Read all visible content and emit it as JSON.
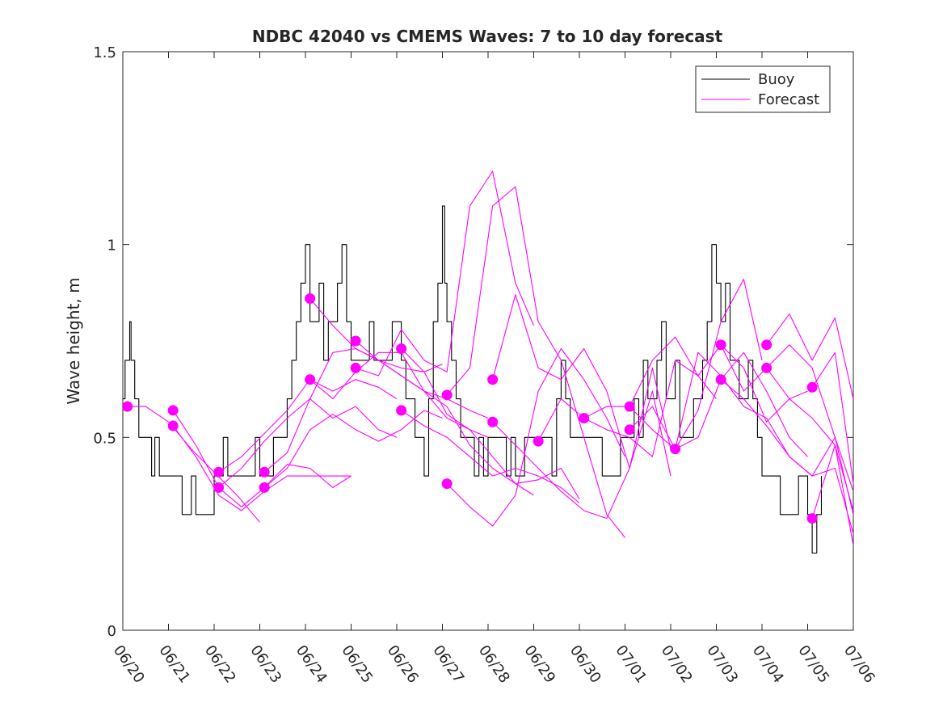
{
  "chart_data": {
    "type": "line",
    "title": "NDBC 42040 vs CMEMS Waves: 7 to 10 day forecast",
    "xlabel": "",
    "ylabel": "Wave height, m",
    "x_unit": "days after 06/20",
    "xlim": [
      0,
      16
    ],
    "ylim": [
      0,
      1.5
    ],
    "yticks": [
      0,
      0.5,
      1,
      1.5
    ],
    "ytick_labels": [
      "0",
      "0.5",
      "1",
      "1.5"
    ],
    "xticks": [
      0,
      1,
      2,
      3,
      4,
      5,
      6,
      7,
      8,
      9,
      10,
      11,
      12,
      13,
      14,
      15,
      16
    ],
    "xtick_labels": [
      "06/20",
      "06/21",
      "06/22",
      "06/23",
      "06/24",
      "06/25",
      "06/26",
      "06/27",
      "06/28",
      "06/29",
      "06/30",
      "07/01",
      "07/02",
      "07/03",
      "07/04",
      "07/05",
      "07/06"
    ],
    "legend": {
      "placement": "top-right",
      "entries": [
        {
          "label": "Buoy",
          "color": "#000000"
        },
        {
          "label": "Forecast",
          "color": "#ff00ff"
        }
      ]
    },
    "colors": {
      "buoy": "#000000",
      "forecast": "#ff00ff"
    },
    "series": [
      {
        "name": "Buoy",
        "color": "#000000",
        "step": true,
        "x": [
          0.0,
          0.05,
          0.1,
          0.15,
          0.18,
          0.22,
          0.26,
          0.3,
          0.35,
          0.4,
          0.45,
          0.5,
          0.58,
          0.63,
          0.7,
          0.8,
          0.9,
          1.0,
          1.1,
          1.2,
          1.3,
          1.38,
          1.45,
          1.5,
          1.6,
          1.8,
          2.0,
          2.2,
          2.3,
          2.4,
          2.5,
          2.55,
          2.6,
          2.7,
          2.8,
          2.9,
          3.0,
          3.1,
          3.2,
          3.3,
          3.35,
          3.4,
          3.5,
          3.6,
          3.7,
          3.8,
          3.9,
          4.0,
          4.1,
          4.2,
          4.3,
          4.4,
          4.5,
          4.6,
          4.7,
          4.75,
          4.8,
          4.9,
          5.0,
          5.1,
          5.2,
          5.3,
          5.4,
          5.5,
          5.6,
          5.7,
          5.8,
          5.9,
          6.0,
          6.1,
          6.2,
          6.3,
          6.4,
          6.5,
          6.6,
          6.7,
          6.8,
          6.9,
          7.0,
          7.05,
          7.1,
          7.2,
          7.3,
          7.4,
          7.5,
          7.6,
          7.7,
          7.8,
          7.9,
          8.0,
          8.1,
          8.2,
          8.3,
          8.4,
          8.5,
          8.6,
          8.7,
          8.8,
          8.9,
          9.0,
          9.1,
          9.2,
          9.3,
          9.4,
          9.5,
          9.6,
          9.7,
          9.8,
          9.9,
          10.0,
          10.1,
          10.2,
          10.3,
          10.4,
          10.5,
          10.6,
          10.7,
          10.8,
          10.9,
          11.0,
          11.1,
          11.2,
          11.3,
          11.4,
          11.5,
          11.6,
          11.7,
          11.8,
          11.9,
          12.0,
          12.1,
          12.2,
          12.3,
          12.4,
          12.5,
          12.6,
          12.7,
          12.8,
          12.9,
          13.0,
          13.1,
          13.2,
          13.3,
          13.4,
          13.5,
          13.6,
          13.7,
          13.8,
          13.9,
          14.0,
          14.2,
          14.4,
          14.6,
          14.8,
          15.0,
          15.05,
          15.1,
          15.2,
          15.3
        ],
        "y": [
          0.6,
          0.7,
          0.7,
          0.8,
          0.7,
          0.7,
          0.6,
          0.6,
          0.5,
          0.5,
          0.5,
          0.5,
          0.5,
          0.4,
          0.5,
          0.4,
          0.4,
          0.4,
          0.4,
          0.4,
          0.3,
          0.3,
          0.3,
          0.4,
          0.3,
          0.3,
          0.4,
          0.5,
          0.4,
          0.4,
          0.4,
          0.4,
          0.4,
          0.4,
          0.4,
          0.5,
          0.4,
          0.4,
          0.4,
          0.5,
          0.5,
          0.5,
          0.5,
          0.6,
          0.7,
          0.8,
          0.9,
          1.0,
          0.8,
          0.8,
          0.9,
          0.7,
          0.8,
          0.8,
          0.9,
          0.9,
          1.0,
          0.8,
          0.7,
          0.7,
          0.7,
          0.7,
          0.8,
          0.7,
          0.7,
          0.7,
          0.7,
          0.8,
          0.8,
          0.7,
          0.6,
          0.6,
          0.5,
          0.5,
          0.4,
          0.6,
          0.8,
          0.9,
          1.1,
          0.9,
          0.8,
          0.7,
          0.6,
          0.5,
          0.5,
          0.5,
          0.4,
          0.5,
          0.4,
          0.5,
          0.5,
          0.5,
          0.5,
          0.4,
          0.5,
          0.4,
          0.4,
          0.5,
          0.5,
          0.5,
          0.5,
          0.5,
          0.5,
          0.4,
          0.6,
          0.7,
          0.6,
          0.5,
          0.5,
          0.5,
          0.5,
          0.5,
          0.5,
          0.5,
          0.4,
          0.4,
          0.4,
          0.4,
          0.5,
          0.5,
          0.5,
          0.6,
          0.5,
          0.7,
          0.6,
          0.6,
          0.7,
          0.8,
          0.6,
          0.6,
          0.7,
          0.5,
          0.5,
          0.5,
          0.6,
          0.6,
          0.7,
          0.8,
          1.0,
          0.9,
          0.8,
          0.9,
          0.7,
          0.7,
          0.6,
          0.6,
          0.7,
          0.6,
          0.5,
          0.4,
          0.4,
          0.3,
          0.3,
          0.4,
          0.3,
          0.3,
          0.2,
          0.3,
          0.4
        ]
      },
      {
        "name": "Forecast",
        "color": "#ff00ff",
        "x": [
          0.1,
          0.5,
          1.0,
          1.5,
          2.0,
          2.5,
          3.0
        ],
        "y": [
          0.58,
          0.58,
          0.54,
          0.47,
          0.41,
          0.35,
          0.28
        ]
      },
      {
        "name": "Forecast",
        "color": "#ff00ff",
        "x": [
          1.1,
          1.6,
          2.1,
          2.6,
          3.1,
          3.6,
          4.1,
          4.6,
          5.0
        ],
        "y": [
          0.57,
          0.48,
          0.37,
          0.32,
          0.37,
          0.43,
          0.42,
          0.37,
          0.4
        ]
      },
      {
        "name": "Forecast",
        "color": "#ff00ff",
        "x": [
          1.1,
          1.6,
          2.1,
          2.6,
          3.1,
          3.6,
          4.1,
          4.6,
          5.0
        ],
        "y": [
          0.53,
          0.45,
          0.35,
          0.31,
          0.36,
          0.4,
          0.4,
          0.4,
          0.4
        ]
      },
      {
        "name": "Forecast",
        "color": "#ff00ff",
        "x": [
          2.1,
          2.6,
          3.1,
          3.6,
          4.1,
          4.6,
          5.1,
          5.6,
          6.0
        ],
        "y": [
          0.41,
          0.45,
          0.51,
          0.57,
          0.65,
          0.62,
          0.65,
          0.63,
          0.6
        ]
      },
      {
        "name": "Forecast",
        "color": "#ff00ff",
        "x": [
          2.1,
          2.6,
          3.1,
          3.6,
          4.1,
          4.6,
          5.1,
          5.6,
          6.0
        ],
        "y": [
          0.37,
          0.42,
          0.49,
          0.55,
          0.6,
          0.55,
          0.58,
          0.52,
          0.5
        ]
      },
      {
        "name": "Forecast",
        "color": "#ff00ff",
        "x": [
          3.1,
          3.6,
          4.1,
          4.6,
          5.1,
          5.6,
          6.1,
          6.6,
          7.0
        ],
        "y": [
          0.41,
          0.46,
          0.6,
          0.72,
          0.73,
          0.7,
          0.68,
          0.67,
          0.69
        ]
      },
      {
        "name": "Forecast",
        "color": "#ff00ff",
        "x": [
          3.1,
          3.6,
          4.1,
          4.6,
          5.1,
          5.6,
          6.1,
          6.6,
          7.0
        ],
        "y": [
          0.37,
          0.42,
          0.52,
          0.56,
          0.52,
          0.49,
          0.52,
          0.57,
          0.55
        ]
      },
      {
        "name": "Forecast",
        "color": "#ff00ff",
        "x": [
          4.1,
          4.6,
          5.1,
          5.6,
          6.1,
          6.6,
          7.1,
          7.6,
          8.0
        ],
        "y": [
          0.86,
          0.79,
          0.73,
          0.7,
          0.66,
          0.62,
          0.6,
          0.57,
          0.55
        ]
      },
      {
        "name": "Forecast",
        "color": "#ff00ff",
        "x": [
          4.1,
          4.6,
          5.1,
          5.6,
          6.1,
          6.6,
          7.1,
          7.6,
          8.0
        ],
        "y": [
          0.65,
          0.6,
          0.67,
          0.72,
          0.72,
          0.62,
          0.55,
          0.52,
          0.5
        ]
      },
      {
        "name": "Forecast",
        "color": "#ff00ff",
        "x": [
          5.1,
          5.6,
          6.1,
          6.6,
          7.1,
          7.6,
          8.1,
          8.6,
          9.0
        ],
        "y": [
          0.75,
          0.7,
          0.66,
          0.62,
          0.58,
          0.48,
          0.42,
          0.38,
          0.35
        ]
      },
      {
        "name": "Forecast",
        "color": "#ff00ff",
        "x": [
          5.1,
          5.6,
          6.1,
          6.6,
          7.1,
          7.6,
          8.1,
          8.6,
          9.0
        ],
        "y": [
          0.68,
          0.66,
          0.78,
          0.7,
          0.67,
          1.1,
          1.19,
          0.9,
          0.79
        ]
      },
      {
        "name": "Forecast",
        "color": "#ff00ff",
        "x": [
          6.1,
          6.6,
          7.1,
          7.6,
          8.1,
          8.6,
          9.1,
          9.6,
          10.0
        ],
        "y": [
          0.73,
          0.67,
          0.56,
          0.52,
          0.45,
          0.38,
          0.39,
          0.42,
          0.34
        ]
      },
      {
        "name": "Forecast",
        "color": "#ff00ff",
        "x": [
          6.1,
          6.6,
          7.1,
          7.6,
          8.1,
          8.6,
          9.1,
          9.6,
          10.0
        ],
        "y": [
          0.57,
          0.53,
          0.5,
          0.45,
          0.4,
          0.42,
          0.4,
          0.37,
          0.33
        ]
      },
      {
        "name": "Forecast",
        "color": "#ff00ff",
        "x": [
          7.1,
          7.6,
          8.1,
          8.6,
          9.1,
          9.6,
          10.1,
          10.6,
          11.0
        ],
        "y": [
          0.61,
          0.68,
          1.1,
          1.15,
          0.8,
          0.7,
          0.5,
          0.3,
          0.24
        ]
      },
      {
        "name": "Forecast",
        "color": "#ff00ff",
        "x": [
          7.1,
          7.6,
          8.1,
          8.6,
          9.1,
          9.6,
          10.1,
          10.6,
          11.0
        ],
        "y": [
          0.38,
          0.32,
          0.27,
          0.35,
          0.62,
          0.73,
          0.65,
          0.55,
          0.45
        ]
      },
      {
        "name": "Forecast",
        "color": "#ff00ff",
        "x": [
          8.1,
          8.6,
          9.1,
          9.6,
          10.1,
          10.6,
          11.1,
          11.6,
          12.0
        ],
        "y": [
          0.65,
          0.87,
          0.68,
          0.65,
          0.73,
          0.62,
          0.42,
          0.68,
          0.47
        ]
      },
      {
        "name": "Forecast",
        "color": "#ff00ff",
        "x": [
          8.1,
          8.6,
          9.1,
          9.6,
          10.1,
          10.6,
          11.1,
          11.6,
          12.0
        ],
        "y": [
          0.54,
          0.48,
          0.42,
          0.36,
          0.31,
          0.29,
          0.42,
          0.62,
          0.4
        ]
      },
      {
        "name": "Forecast",
        "color": "#ff00ff",
        "x": [
          9.1,
          9.6,
          10.1,
          10.6,
          11.1,
          11.6,
          12.1,
          12.6,
          13.0
        ],
        "y": [
          0.49,
          0.6,
          0.55,
          0.52,
          0.5,
          0.45,
          0.7,
          0.66,
          0.6
        ]
      },
      {
        "name": "Forecast",
        "color": "#ff00ff",
        "x": [
          10.1,
          10.6,
          11.1,
          11.6,
          12.1,
          12.6,
          13.1,
          13.6,
          14.0
        ],
        "y": [
          0.55,
          0.58,
          0.58,
          0.52,
          0.47,
          0.57,
          0.8,
          0.91,
          0.7
        ]
      },
      {
        "name": "Forecast",
        "color": "#ff00ff",
        "x": [
          11.1,
          11.6,
          12.1,
          12.6,
          13.1,
          13.6,
          14.1,
          14.6,
          15.0
        ],
        "y": [
          0.58,
          0.7,
          0.76,
          0.66,
          0.74,
          0.68,
          0.54,
          0.6,
          0.62
        ]
      },
      {
        "name": "Forecast",
        "color": "#ff00ff",
        "x": [
          11.1,
          11.6,
          12.1,
          12.6,
          13.1,
          13.6,
          14.1,
          14.6,
          15.0
        ],
        "y": [
          0.52,
          0.58,
          0.47,
          0.5,
          0.65,
          0.72,
          0.62,
          0.5,
          0.45
        ]
      },
      {
        "name": "Forecast",
        "color": "#ff00ff",
        "x": [
          12.1,
          12.6,
          13.1,
          13.6,
          14.1,
          14.6,
          15.1,
          15.6,
          16.0
        ],
        "y": [
          0.47,
          0.72,
          0.66,
          0.58,
          0.55,
          0.45,
          0.4,
          0.5,
          0.36
        ]
      },
      {
        "name": "Forecast",
        "color": "#ff00ff",
        "x": [
          13.1,
          13.6,
          14.1,
          14.6,
          15.1,
          15.6,
          16.0
        ],
        "y": [
          0.74,
          0.62,
          0.68,
          0.74,
          0.68,
          0.5,
          0.3
        ]
      },
      {
        "name": "Forecast",
        "color": "#ff00ff",
        "x": [
          13.1,
          13.6,
          14.1,
          14.6,
          15.1,
          15.6,
          16.0
        ],
        "y": [
          0.65,
          0.6,
          0.53,
          0.45,
          0.4,
          0.42,
          0.25
        ]
      },
      {
        "name": "Forecast",
        "color": "#ff00ff",
        "x": [
          14.1,
          14.6,
          15.1,
          15.6,
          16.0
        ],
        "y": [
          0.74,
          0.82,
          0.7,
          0.81,
          0.6
        ]
      },
      {
        "name": "Forecast",
        "color": "#ff00ff",
        "x": [
          14.1,
          14.6,
          15.1,
          15.6,
          16.0
        ],
        "y": [
          0.68,
          0.6,
          0.55,
          0.48,
          0.22
        ]
      },
      {
        "name": "Forecast",
        "color": "#ff00ff",
        "x": [
          15.1,
          15.6,
          16.0
        ],
        "y": [
          0.63,
          0.72,
          0.38
        ]
      },
      {
        "name": "Forecast",
        "color": "#ff00ff",
        "x": [
          15.1,
          15.6,
          16.0
        ],
        "y": [
          0.29,
          0.48,
          0.31
        ]
      }
    ],
    "markers": {
      "name": "Forecast",
      "color": "#ff00ff",
      "x": [
        0.1,
        1.1,
        1.1,
        2.1,
        2.1,
        3.1,
        3.1,
        4.1,
        4.1,
        5.1,
        5.1,
        6.1,
        6.1,
        7.1,
        7.1,
        8.1,
        8.1,
        9.1,
        10.1,
        11.1,
        11.1,
        12.1,
        13.1,
        13.1,
        14.1,
        14.1,
        15.1,
        15.1
      ],
      "y": [
        0.58,
        0.57,
        0.53,
        0.41,
        0.37,
        0.41,
        0.37,
        0.86,
        0.65,
        0.75,
        0.68,
        0.73,
        0.57,
        0.61,
        0.38,
        0.65,
        0.54,
        0.49,
        0.55,
        0.58,
        0.52,
        0.47,
        0.74,
        0.65,
        0.74,
        0.68,
        0.63,
        0.29
      ]
    }
  }
}
